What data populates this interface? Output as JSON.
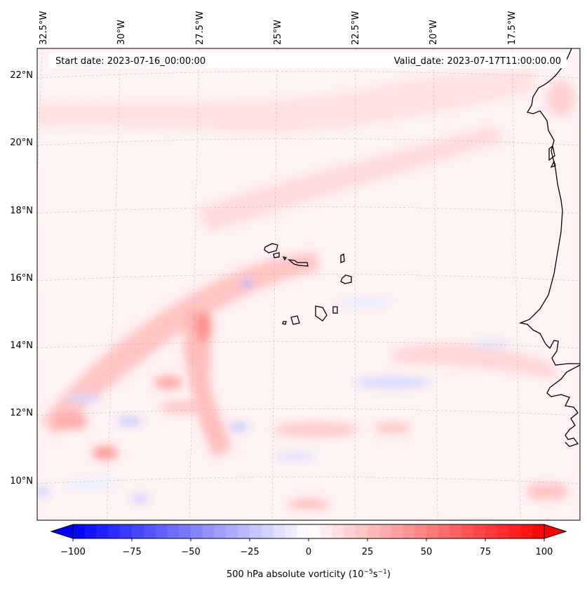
{
  "header": {
    "start_label": "Start date: 2023-07-16_00:00:00",
    "valid_label": "Valid_date: 2023-07-17T11:00:00.00"
  },
  "lon_labels": [
    "32.5°W",
    "30°W",
    "27.5°W",
    "25°W",
    "22.5°W",
    "20°W",
    "17.5°W"
  ],
  "lat_labels": [
    "22°N",
    "20°N",
    "18°N",
    "16°N",
    "14°N",
    "12°N",
    "10°N"
  ],
  "colorbar": {
    "ticks": [
      "−100",
      "−75",
      "−50",
      "−25",
      "0",
      "25",
      "50",
      "75",
      "100"
    ],
    "title": "500 hPa absolute vorticity (10",
    "unit_exp1": "−5",
    "unit_mid": "s",
    "unit_exp2": "−1",
    "unit_end": ")",
    "range": [
      -100,
      100
    ],
    "negative_color": "#0000ff",
    "positive_color": "#ff0000"
  },
  "map": {
    "region": "Cape Verde / West Africa coast",
    "land_outline_color": "#000000"
  }
}
